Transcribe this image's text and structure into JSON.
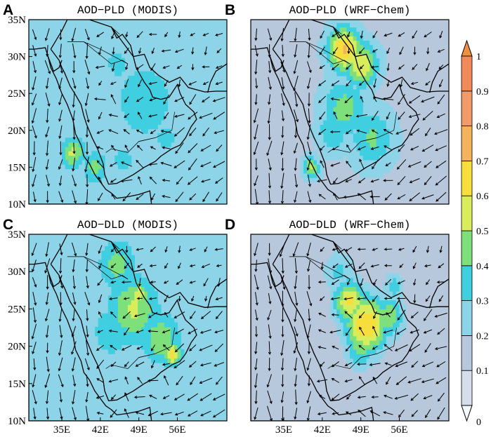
{
  "chart_data": {
    "type": "heatmap",
    "variable": "AOD",
    "overlay": "wind vectors",
    "panels": [
      {
        "letter": "A",
        "title": "AOD−PLD (MODIS)",
        "hotspots": [
          [
            42,
            32,
            0.4,
            3
          ],
          [
            50,
            24,
            0.48,
            5
          ],
          [
            37,
            17,
            0.62,
            2
          ],
          [
            41,
            15,
            0.55,
            2
          ],
          [
            46,
            16,
            0.45,
            2
          ],
          [
            54,
            19,
            0.5,
            1.5
          ],
          [
            45,
            29,
            0.42,
            3
          ]
        ],
        "background": 0.32
      },
      {
        "letter": "B",
        "title": "AOD−PLD (WRF−Chem)",
        "hotspots": [
          [
            46,
            31,
            0.82,
            3
          ],
          [
            49,
            29,
            0.7,
            3
          ],
          [
            46,
            23,
            0.55,
            4
          ],
          [
            51,
            19,
            0.52,
            4
          ],
          [
            40,
            15,
            0.62,
            1.5
          ],
          [
            44,
            20,
            0.5,
            3
          ]
        ],
        "background": 0.26
      },
      {
        "letter": "C",
        "title": "AOD−DLD (MODIS)",
        "hotspots": [
          [
            45,
            31,
            0.55,
            3
          ],
          [
            48,
            25,
            0.62,
            4
          ],
          [
            53,
            21,
            0.6,
            3
          ],
          [
            55,
            19,
            0.72,
            1.5
          ],
          [
            44,
            22,
            0.5,
            3
          ],
          [
            49,
            27,
            0.7,
            1.5
          ],
          [
            39,
            20,
            0.38,
            4
          ]
        ],
        "background": 0.33
      },
      {
        "letter": "D",
        "title": "AOD−DLD (WRF−Chem)",
        "hotspots": [
          [
            50,
            23,
            0.8,
            4
          ],
          [
            47,
            26,
            0.72,
            3
          ],
          [
            54,
            24,
            0.58,
            3
          ],
          [
            45,
            30,
            0.42,
            3
          ],
          [
            55,
            28,
            0.45,
            2
          ],
          [
            49,
            20,
            0.55,
            3
          ]
        ],
        "background": 0.2
      }
    ],
    "lon_ticks": [
      "35E",
      "42E",
      "49E",
      "56E"
    ],
    "lon_tick_values": [
      35,
      42,
      49,
      56
    ],
    "lat_ticks": [
      "35N",
      "30N",
      "25N",
      "20N",
      "15N",
      "10N"
    ],
    "lat_tick_values": [
      35,
      30,
      25,
      20,
      15,
      10
    ],
    "lon_range": [
      29,
      65
    ],
    "lat_range": [
      10,
      35
    ],
    "colorbar": {
      "levels": [
        0,
        0.1,
        0.2,
        0.3,
        0.4,
        0.5,
        0.6,
        0.7,
        0.8,
        0.9,
        1
      ],
      "labels": [
        "0",
        "0.1",
        "0.2",
        "0.3",
        "0.4",
        "0.5",
        "0.6",
        "0.7",
        "0.8",
        "0.9",
        "1"
      ],
      "colors": [
        "#f4f7fb",
        "#d5dfec",
        "#b8c8dc",
        "#8ed4e8",
        "#3fcfe0",
        "#7ee07a",
        "#d9ec5b",
        "#f6de3c",
        "#f3b35c",
        "#f19a6a",
        "#f08a5a",
        "#f0913d"
      ]
    }
  }
}
